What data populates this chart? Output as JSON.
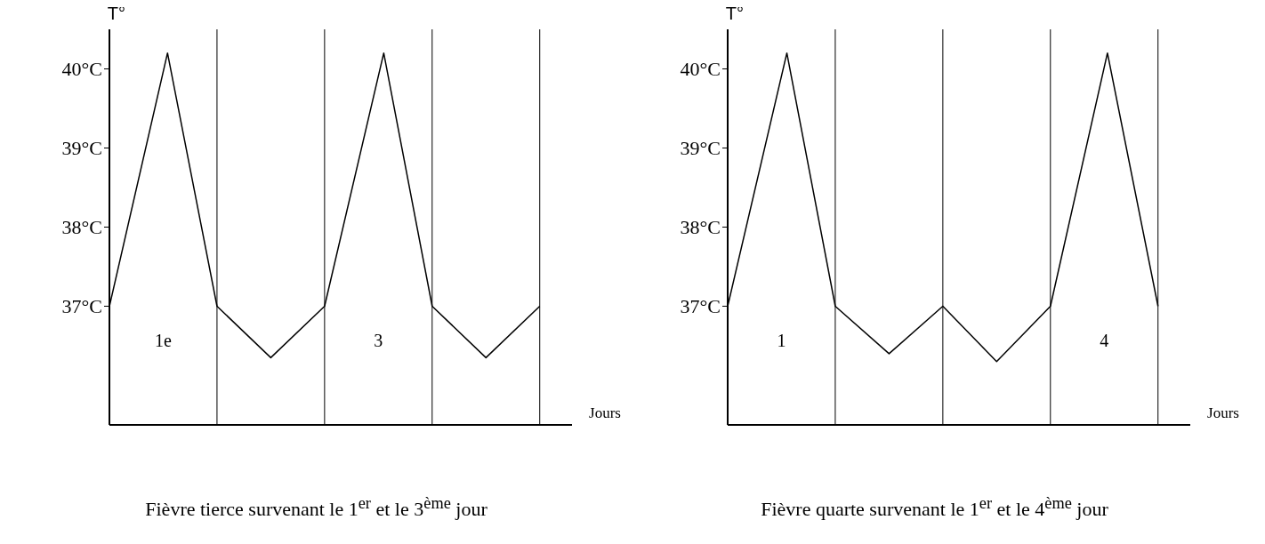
{
  "chart_data": [
    {
      "type": "line",
      "title": "Fièvre tierce survenant le 1$^{er}$ et le 3$^{ème}$ jour",
      "xlabel": "Jours",
      "ylabel": "T°",
      "color": "#000000",
      "marker": "none",
      "x": [
        0,
        0.54,
        1,
        1.5,
        2,
        2.55,
        3,
        3.5,
        4
      ],
      "values": [
        37,
        40.2,
        37,
        36.35,
        37,
        40.2,
        37,
        36.35,
        37
      ],
      "xlim": [
        0,
        4.3
      ],
      "xticks": [
        {
          "value": 0.5,
          "label": "1e"
        },
        {
          "value": 2.5,
          "label": "3"
        }
      ],
      "ylim": [
        35.5,
        40.5
      ],
      "yticks": [
        {
          "value": 37,
          "label": "37°C"
        },
        {
          "value": 38,
          "label": "38°C"
        },
        {
          "value": 39,
          "label": "39°C"
        },
        {
          "value": 40,
          "label": "40°C"
        }
      ],
      "ref_lines": [
        {
          "axis": "x",
          "value": 1,
          "color": "#000000"
        },
        {
          "axis": "x",
          "value": 2,
          "color": "#000000"
        },
        {
          "axis": "x",
          "value": 3,
          "color": "#000000"
        },
        {
          "axis": "x",
          "value": 4,
          "color": "#000000"
        }
      ]
    },
    {
      "type": "line",
      "title": "Fièvre quarte survenant le 1$^{er}$ et le 4$^{ème}$ jour",
      "xlabel": "Jours",
      "ylabel": "T°",
      "color": "#000000",
      "marker": "none",
      "x": [
        0,
        0.55,
        1,
        1.5,
        2,
        2.5,
        3,
        3.53,
        4
      ],
      "values": [
        37,
        40.2,
        37,
        36.4,
        37,
        36.3,
        37,
        40.2,
        37
      ],
      "xlim": [
        0,
        4.3
      ],
      "xticks": [
        {
          "value": 0.5,
          "label": "1"
        },
        {
          "value": 3.5,
          "label": "4"
        }
      ],
      "ylim": [
        35.5,
        40.5
      ],
      "yticks": [
        {
          "value": 37,
          "label": "37°C"
        },
        {
          "value": 38,
          "label": "38°C"
        },
        {
          "value": 39,
          "label": "39°C"
        },
        {
          "value": 40,
          "label": "40°C"
        }
      ],
      "ref_lines": [
        {
          "axis": "x",
          "value": 1,
          "color": "#000000"
        },
        {
          "axis": "x",
          "value": 2,
          "color": "#000000"
        },
        {
          "axis": "x",
          "value": 3,
          "color": "#000000"
        },
        {
          "axis": "x",
          "value": 4,
          "color": "#000000"
        }
      ]
    }
  ]
}
